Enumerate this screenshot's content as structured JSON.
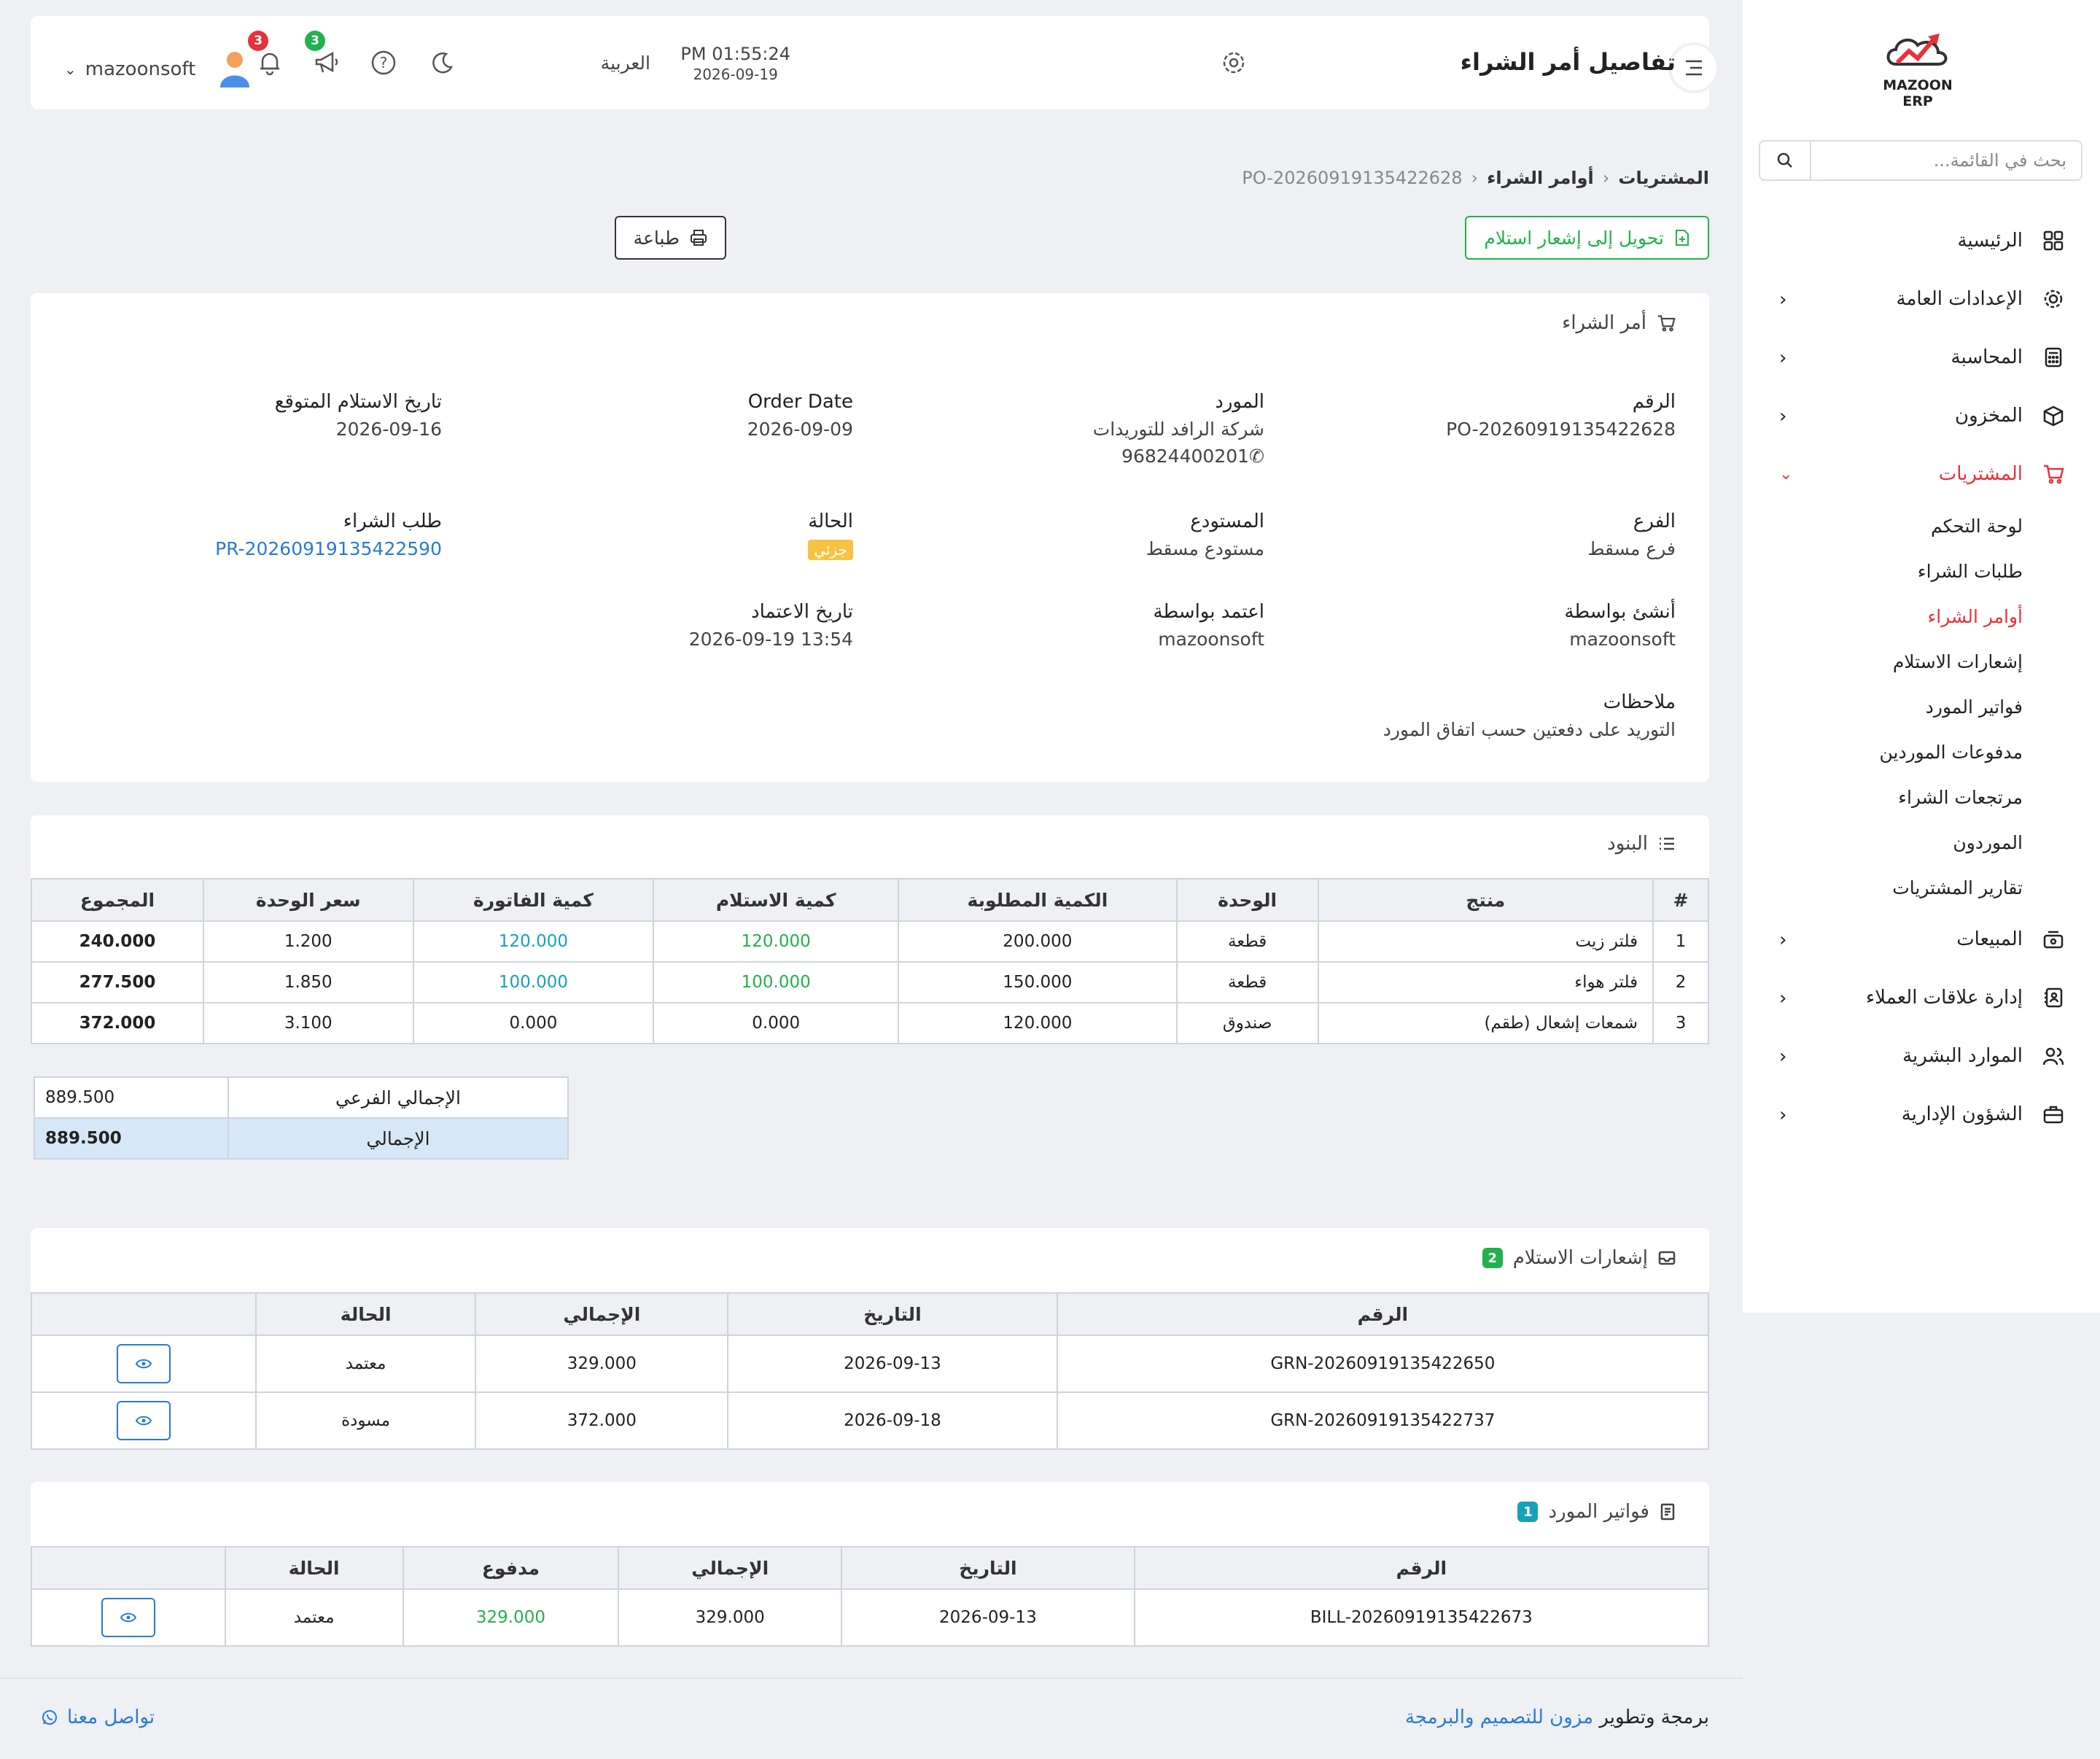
{
  "sidebar": {
    "brand": "MAZOON ERP",
    "search_placeholder": "بحث في القائمة...",
    "items": [
      {
        "label": "الرئيسية"
      },
      {
        "label": "الإعدادات العامة"
      },
      {
        "label": "المحاسبة"
      },
      {
        "label": "المخزون"
      },
      {
        "label": "المشتريات"
      },
      {
        "label": "المبيعات"
      },
      {
        "label": "إدارة علاقات العملاء"
      },
      {
        "label": "الموارد البشرية"
      },
      {
        "label": "الشؤون الإدارية"
      }
    ],
    "submenu": [
      {
        "label": "لوحة التحكم"
      },
      {
        "label": "طلبات الشراء"
      },
      {
        "label": "أوامر الشراء"
      },
      {
        "label": "إشعارات الاستلام"
      },
      {
        "label": "فواتير المورد"
      },
      {
        "label": "مدفوعات الموردين"
      },
      {
        "label": "مرتجعات الشراء"
      },
      {
        "label": "الموردون"
      },
      {
        "label": "تقارير المشتريات"
      }
    ]
  },
  "topbar": {
    "title": "تفاصيل أمر الشراء",
    "time": "PM 01:55:24",
    "date": "2026-09-19",
    "language": "العربية",
    "announcements_count": "3",
    "notifications_count": "3",
    "username": "mazoonsoft"
  },
  "breadcrumb": {
    "root": "المشتريات",
    "section": "أوامر الشراء",
    "current": "PO-20260919135422628"
  },
  "actions": {
    "convert": "تحويل إلى إشعار استلام",
    "print": "طباعة"
  },
  "order": {
    "title": "أمر الشراء",
    "number_label": "الرقم",
    "number": "PO-20260919135422628",
    "supplier_label": "المورد",
    "supplier": "شركة الرافد للتوريدات",
    "supplier_phone": "96824400201",
    "order_date_label": "Order Date",
    "order_date": "2026-09-09",
    "expected_label": "تاريخ الاستلام المتوقع",
    "expected": "2026-09-16",
    "branch_label": "الفرع",
    "branch": "فرع مسقط",
    "warehouse_label": "المستودع",
    "warehouse": "مستودع مسقط",
    "status_label": "الحالة",
    "status": "جزئي",
    "request_label": "طلب الشراء",
    "request": "PR-20260919135422590",
    "created_by_label": "أنشئ بواسطة",
    "created_by": "mazoonsoft",
    "approved_by_label": "اعتمد بواسطة",
    "approved_by": "mazoonsoft",
    "approved_at_label": "تاريخ الاعتماد",
    "approved_at": "2026-09-19 13:54",
    "notes_label": "ملاحظات",
    "notes": "التوريد على دفعتين حسب اتفاق المورد"
  },
  "items": {
    "title": "البنود",
    "headers": [
      "#",
      "منتج",
      "الوحدة",
      "الكمية المطلوبة",
      "كمية الاستلام",
      "كمية الفاتورة",
      "سعر الوحدة",
      "المجموع"
    ],
    "rows": [
      [
        "1",
        "فلتر زيت",
        "قطعة",
        "200.000",
        "120.000",
        "120.000",
        "1.200",
        "240.000"
      ],
      [
        "2",
        "فلتر هواء",
        "قطعة",
        "150.000",
        "100.000",
        "100.000",
        "1.850",
        "277.500"
      ],
      [
        "3",
        "شمعات إشعال (طقم)",
        "صندوق",
        "120.000",
        "0.000",
        "0.000",
        "3.100",
        "372.000"
      ]
    ],
    "subtotal_label": "الإجمالي الفرعي",
    "subtotal": "889.500",
    "total_label": "الإجمالي",
    "total": "889.500"
  },
  "receipts": {
    "title": "إشعارات الاستلام",
    "count": "2",
    "headers": [
      "الرقم",
      "التاريخ",
      "الإجمالي",
      "الحالة",
      ""
    ],
    "rows": [
      [
        "GRN-20260919135422650",
        "2026-09-13",
        "329.000",
        "معتمد"
      ],
      [
        "GRN-20260919135422737",
        "2026-09-18",
        "372.000",
        "مسودة"
      ]
    ]
  },
  "bills": {
    "title": "فواتير المورد",
    "count": "1",
    "headers": [
      "الرقم",
      "التاريخ",
      "الإجمالي",
      "مدفوع",
      "الحالة",
      ""
    ],
    "rows": [
      [
        "BILL-20260919135422673",
        "2026-09-13",
        "329.000",
        "329.000",
        "معتمد"
      ]
    ]
  },
  "footer": {
    "prefix": "برمجة وتطوير",
    "company": "مزون للتصميم والبرمجة",
    "contact": "تواصل معنا"
  },
  "colors": {
    "accent": "#e8313a",
    "success": "#22b14c",
    "info": "#17a2b8",
    "link": "#2a7ad6",
    "warning": "#f6c342"
  }
}
